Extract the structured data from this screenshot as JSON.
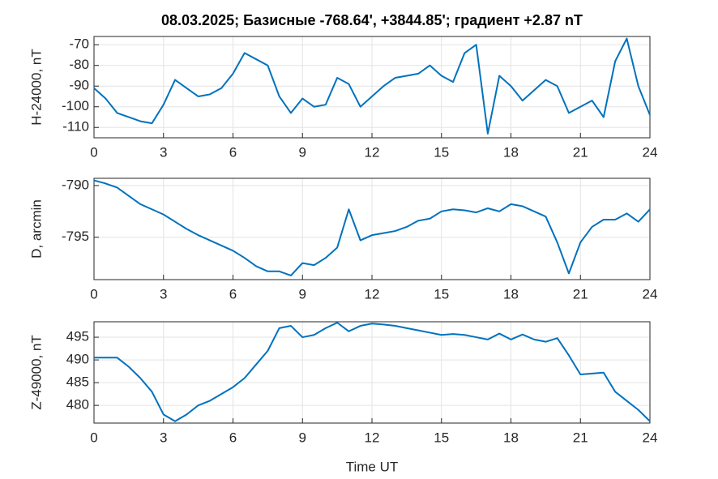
{
  "chart_data": [
    {
      "type": "line",
      "title": "08.03.2025;  Базисные  -768.64', +3844.85'; градиент +2.87 nT",
      "ylabel": "H-24000, nT",
      "x": [
        0,
        0.5,
        1,
        1.5,
        2,
        2.5,
        3,
        3.5,
        4,
        4.5,
        5,
        5.5,
        6,
        6.5,
        7,
        7.5,
        8,
        8.5,
        9,
        9.5,
        10,
        10.5,
        11,
        11.5,
        12,
        12.5,
        13,
        13.5,
        14,
        14.5,
        15,
        15.5,
        16,
        16.5,
        17,
        17.5,
        18,
        18.5,
        19,
        19.5,
        20,
        20.5,
        21,
        21.5,
        22,
        22.5,
        23,
        23.5,
        24
      ],
      "values": [
        -91,
        -96,
        -103,
        -105,
        -107,
        -108,
        -99,
        -87,
        -91,
        -95,
        -94,
        -91,
        -84,
        -74,
        -77,
        -80,
        -95,
        -103,
        -96,
        -100,
        -99,
        -86,
        -89,
        -100,
        -95,
        -90,
        -86,
        -85,
        -84,
        -80,
        -85,
        -88,
        -74,
        -70,
        -113,
        -85,
        -90,
        -97,
        -92,
        -87,
        -90,
        -103,
        -100,
        -97,
        -105,
        -78,
        -67,
        -90,
        -104
      ],
      "color": "#0072bd",
      "xlim": [
        0,
        24
      ],
      "xticks": [
        0,
        3,
        6,
        9,
        12,
        15,
        18,
        21,
        24
      ],
      "ylim": [
        -115,
        -66
      ],
      "yticks": [
        -110,
        -100,
        -90,
        -80,
        -70
      ],
      "grid": true
    },
    {
      "type": "line",
      "ylabel": "D, arcmin",
      "x": [
        0,
        0.5,
        1,
        1.5,
        2,
        2.5,
        3,
        3.5,
        4,
        4.5,
        5,
        5.5,
        6,
        6.5,
        7,
        7.5,
        8,
        8.5,
        9,
        9.5,
        10,
        10.5,
        11,
        11.5,
        12,
        12.5,
        13,
        13.5,
        14,
        14.5,
        15,
        15.5,
        16,
        16.5,
        17,
        17.5,
        18,
        18.5,
        19,
        19.5,
        20,
        20.5,
        21,
        21.5,
        22,
        22.5,
        23,
        23.5,
        24
      ],
      "values": [
        -789.5,
        -789.8,
        -790.2,
        -791,
        -791.8,
        -792.3,
        -792.8,
        -793.5,
        -794.2,
        -794.8,
        -795.3,
        -795.8,
        -796.3,
        -797,
        -797.8,
        -798.3,
        -798.3,
        -798.7,
        -797.5,
        -797.7,
        -797,
        -796,
        -792.3,
        -795.3,
        -794.8,
        -794.6,
        -794.4,
        -794,
        -793.4,
        -793.2,
        -792.5,
        -792.3,
        -792.4,
        -792.6,
        -792.2,
        -792.5,
        -791.8,
        -792,
        -792.5,
        -793,
        -795.5,
        -798.5,
        -795.5,
        -794,
        -793.3,
        -793.3,
        -792.7,
        -793.5,
        -792.3
      ],
      "color": "#0072bd",
      "xlim": [
        0,
        24
      ],
      "xticks": [
        0,
        3,
        6,
        9,
        12,
        15,
        18,
        21,
        24
      ],
      "ylim": [
        -799.1,
        -789.3
      ],
      "yticks": [
        -795,
        -790
      ],
      "grid": true
    },
    {
      "type": "line",
      "ylabel": "Z-49000, nT",
      "xlabel": "Time UT",
      "x": [
        0,
        0.5,
        1,
        1.5,
        2,
        2.5,
        3,
        3.5,
        4,
        4.5,
        5,
        5.5,
        6,
        6.5,
        7,
        7.5,
        8,
        8.5,
        9,
        9.5,
        10,
        10.5,
        11,
        11.5,
        12,
        12.5,
        13,
        13.5,
        14,
        14.5,
        15,
        15.5,
        16,
        16.5,
        17,
        17.5,
        18,
        18.5,
        19,
        19.5,
        20,
        20.5,
        21,
        21.5,
        22,
        22.5,
        23,
        23.5,
        24
      ],
      "values": [
        490.5,
        490.5,
        490.5,
        488.5,
        486,
        483,
        478,
        476.5,
        478,
        480,
        481,
        482.5,
        484,
        486,
        489,
        492,
        497,
        497.5,
        495,
        495.5,
        497,
        498.2,
        496.3,
        497.5,
        498,
        497.8,
        497.5,
        497,
        496.5,
        496,
        495.5,
        495.7,
        495.5,
        495,
        494.5,
        495.8,
        494.5,
        495.6,
        494.5,
        494,
        494.8,
        491,
        486.8,
        487,
        487.2,
        483,
        481,
        479,
        476.5
      ],
      "color": "#0072bd",
      "xlim": [
        0,
        24
      ],
      "xticks": [
        0,
        3,
        6,
        9,
        12,
        15,
        18,
        21,
        24
      ],
      "ylim": [
        476.1,
        498.4
      ],
      "yticks": [
        480,
        485,
        490,
        495
      ],
      "grid": true
    }
  ]
}
